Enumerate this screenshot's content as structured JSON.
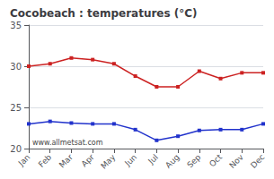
{
  "chart_data": {
    "type": "line",
    "title": "Cocobeach : temperatures (°C)",
    "categories": [
      "Jan",
      "Feb",
      "Mar",
      "Apr",
      "May",
      "Jun",
      "Jul",
      "Aug",
      "Sep",
      "Oct",
      "Nov",
      "Dec"
    ],
    "series": [
      {
        "color": "#cc2222",
        "values": [
          30.0,
          30.3,
          31.0,
          30.8,
          30.3,
          28.8,
          27.5,
          27.5,
          29.4,
          28.5,
          29.2,
          29.2
        ]
      },
      {
        "color": "#2233cc",
        "values": [
          23.0,
          23.3,
          23.1,
          23.0,
          23.0,
          22.3,
          21.0,
          21.5,
          22.2,
          22.3,
          22.3,
          23.0
        ]
      }
    ],
    "ylim": [
      20,
      35
    ],
    "yticks": [
      20,
      25,
      30,
      35
    ],
    "grid": true,
    "marker": "square",
    "annotations": [
      "www.allmetsat.com"
    ]
  }
}
